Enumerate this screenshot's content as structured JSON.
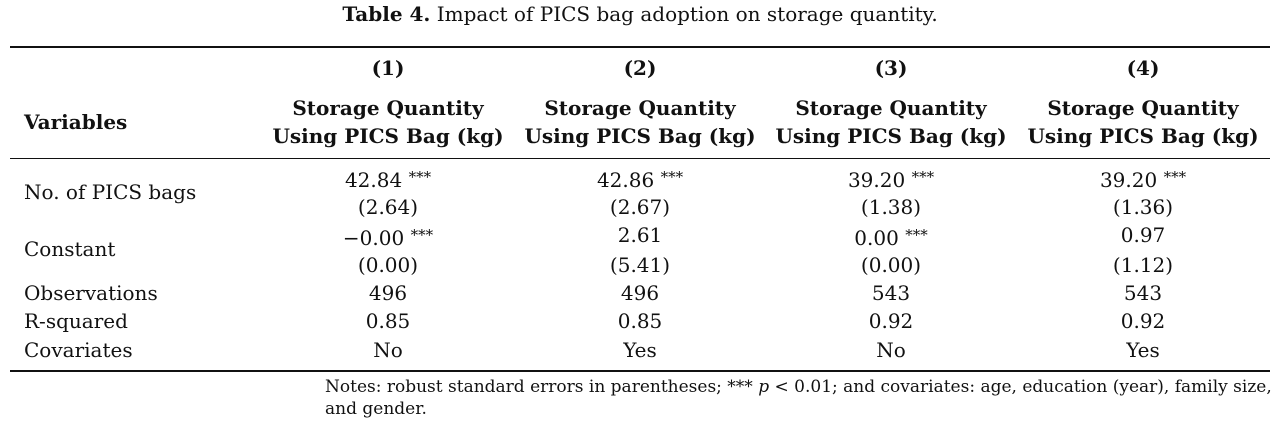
{
  "caption": {
    "label": "Table 4.",
    "text": " Impact of PICS bag adoption on storage quantity."
  },
  "header": {
    "columns": [
      "(1)",
      "(2)",
      "(3)",
      "(4)"
    ],
    "variables_label": "Variables",
    "dep_var_line1": "Storage Quantity",
    "dep_var_line2": "Using PICS Bag (kg)"
  },
  "rows": {
    "pics_bags": {
      "label": "No. of PICS bags",
      "coef": [
        "42.84",
        "42.86",
        "39.20",
        "39.20"
      ],
      "stars": [
        "***",
        "***",
        "***",
        "***"
      ],
      "se": [
        "(2.64)",
        "(2.67)",
        "(1.38)",
        "(1.36)"
      ]
    },
    "constant": {
      "label": "Constant",
      "coef": [
        "−0.00",
        "2.61",
        "0.00",
        "0.97"
      ],
      "stars": [
        "***",
        "",
        "***",
        ""
      ],
      "se": [
        "(0.00)",
        "(5.41)",
        "(0.00)",
        "(1.12)"
      ]
    },
    "observations": {
      "label": "Observations",
      "values": [
        "496",
        "496",
        "543",
        "543"
      ]
    },
    "r_squared": {
      "label": "R-squared",
      "values": [
        "0.85",
        "0.85",
        "0.92",
        "0.92"
      ]
    },
    "covariates": {
      "label": "Covariates",
      "values": [
        "No",
        "Yes",
        "No",
        "Yes"
      ]
    }
  },
  "notes": {
    "part1": "Notes: robust standard errors in parentheses; *** ",
    "p": "p",
    "part2": " < 0.01; and covariates: age, education (year), family size, and gender."
  }
}
